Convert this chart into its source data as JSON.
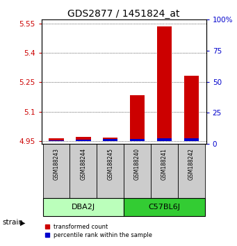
{
  "title": "GDS2877 / 1451824_at",
  "samples": [
    "GSM188243",
    "GSM188244",
    "GSM188245",
    "GSM188240",
    "GSM188241",
    "GSM188242"
  ],
  "red_values": [
    4.963,
    4.972,
    4.968,
    5.185,
    5.535,
    5.285
  ],
  "blue_values": [
    4.955,
    4.958,
    4.962,
    4.96,
    4.965,
    4.963
  ],
  "base": 4.95,
  "ylim_left": [
    4.935,
    5.57
  ],
  "ylim_right": [
    0,
    100
  ],
  "yticks_left": [
    4.95,
    5.1,
    5.25,
    5.4,
    5.55
  ],
  "yticks_right": [
    0,
    25,
    50,
    75,
    100
  ],
  "ytick_labels_left": [
    "4.95",
    "5.1",
    "5.25",
    "5.4",
    "5.55"
  ],
  "ytick_labels_right": [
    "0",
    "25",
    "50",
    "75",
    "100%"
  ],
  "left_color": "#cc0000",
  "right_color": "#0000cc",
  "red_bar_color": "#cc0000",
  "blue_bar_color": "#0000cc",
  "legend_labels": [
    "transformed count",
    "percentile rank within the sample"
  ],
  "legend_colors": [
    "#cc0000",
    "#0000cc"
  ],
  "strain_label": "strain",
  "sample_bg_color": "#cccccc",
  "group_info": [
    {
      "name": "DBA2J",
      "start": 0,
      "end": 2,
      "color": "#bbffbb"
    },
    {
      "name": "C57BL6J",
      "start": 3,
      "end": 5,
      "color": "#33cc33"
    }
  ],
  "title_fontsize": 10,
  "tick_fontsize": 7.5,
  "bar_width": 0.55
}
